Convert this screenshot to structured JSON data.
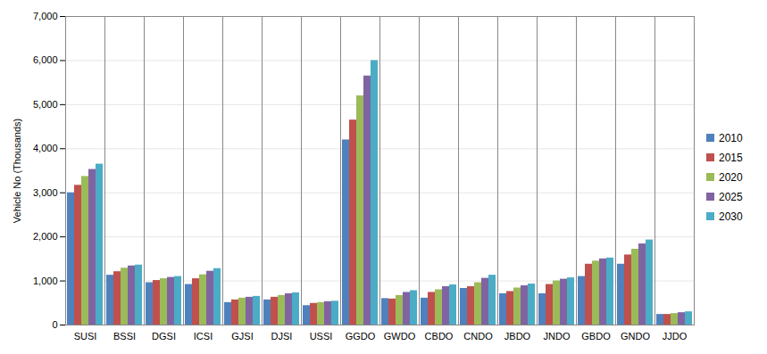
{
  "chart_data": {
    "type": "bar",
    "categories": [
      "SUSI",
      "BSSI",
      "DGSI",
      "ICSI",
      "GJSI",
      "DJSI",
      "USSI",
      "GGDO",
      "GWDO",
      "CBDO",
      "CNDO",
      "JBDO",
      "JNDO",
      "GBDO",
      "GNDO",
      "JJDO"
    ],
    "series": [
      {
        "name": "2010",
        "color": "#4f81bd",
        "values": [
          3000,
          1130,
          960,
          920,
          510,
          570,
          440,
          4200,
          600,
          610,
          830,
          710,
          710,
          1100,
          1380,
          240
        ]
      },
      {
        "name": "2015",
        "color": "#c0504d",
        "values": [
          3170,
          1210,
          1010,
          1050,
          570,
          630,
          490,
          4650,
          590,
          740,
          870,
          760,
          920,
          1380,
          1590,
          240
        ]
      },
      {
        "name": "2020",
        "color": "#9bbb59",
        "values": [
          3370,
          1290,
          1050,
          1140,
          610,
          670,
          510,
          5200,
          670,
          800,
          960,
          840,
          1000,
          1450,
          1720,
          260
        ]
      },
      {
        "name": "2025",
        "color": "#8064a2",
        "values": [
          3530,
          1340,
          1080,
          1220,
          630,
          710,
          530,
          5650,
          740,
          870,
          1060,
          890,
          1040,
          1500,
          1840,
          280
        ]
      },
      {
        "name": "2030",
        "color": "#4bacc6",
        "values": [
          3650,
          1360,
          1100,
          1280,
          650,
          730,
          540,
          6000,
          780,
          910,
          1130,
          930,
          1070,
          1520,
          1930,
          300
        ]
      }
    ],
    "y_label": "Vehicle No (Thousands)",
    "ylim": [
      0,
      7000
    ],
    "yticks": [
      0,
      {
        "value": 1000,
        "label": "1,000"
      },
      {
        "value": 2000,
        "label": "2,000"
      },
      {
        "value": 3000,
        "label": "3,000"
      },
      {
        "value": 4000,
        "label": "4,000"
      },
      {
        "value": 5000,
        "label": "5,000"
      },
      {
        "value": 6000,
        "label": "6,000"
      },
      {
        "value": 7000,
        "label": "7,000"
      }
    ],
    "grid": true,
    "legend": "right"
  }
}
